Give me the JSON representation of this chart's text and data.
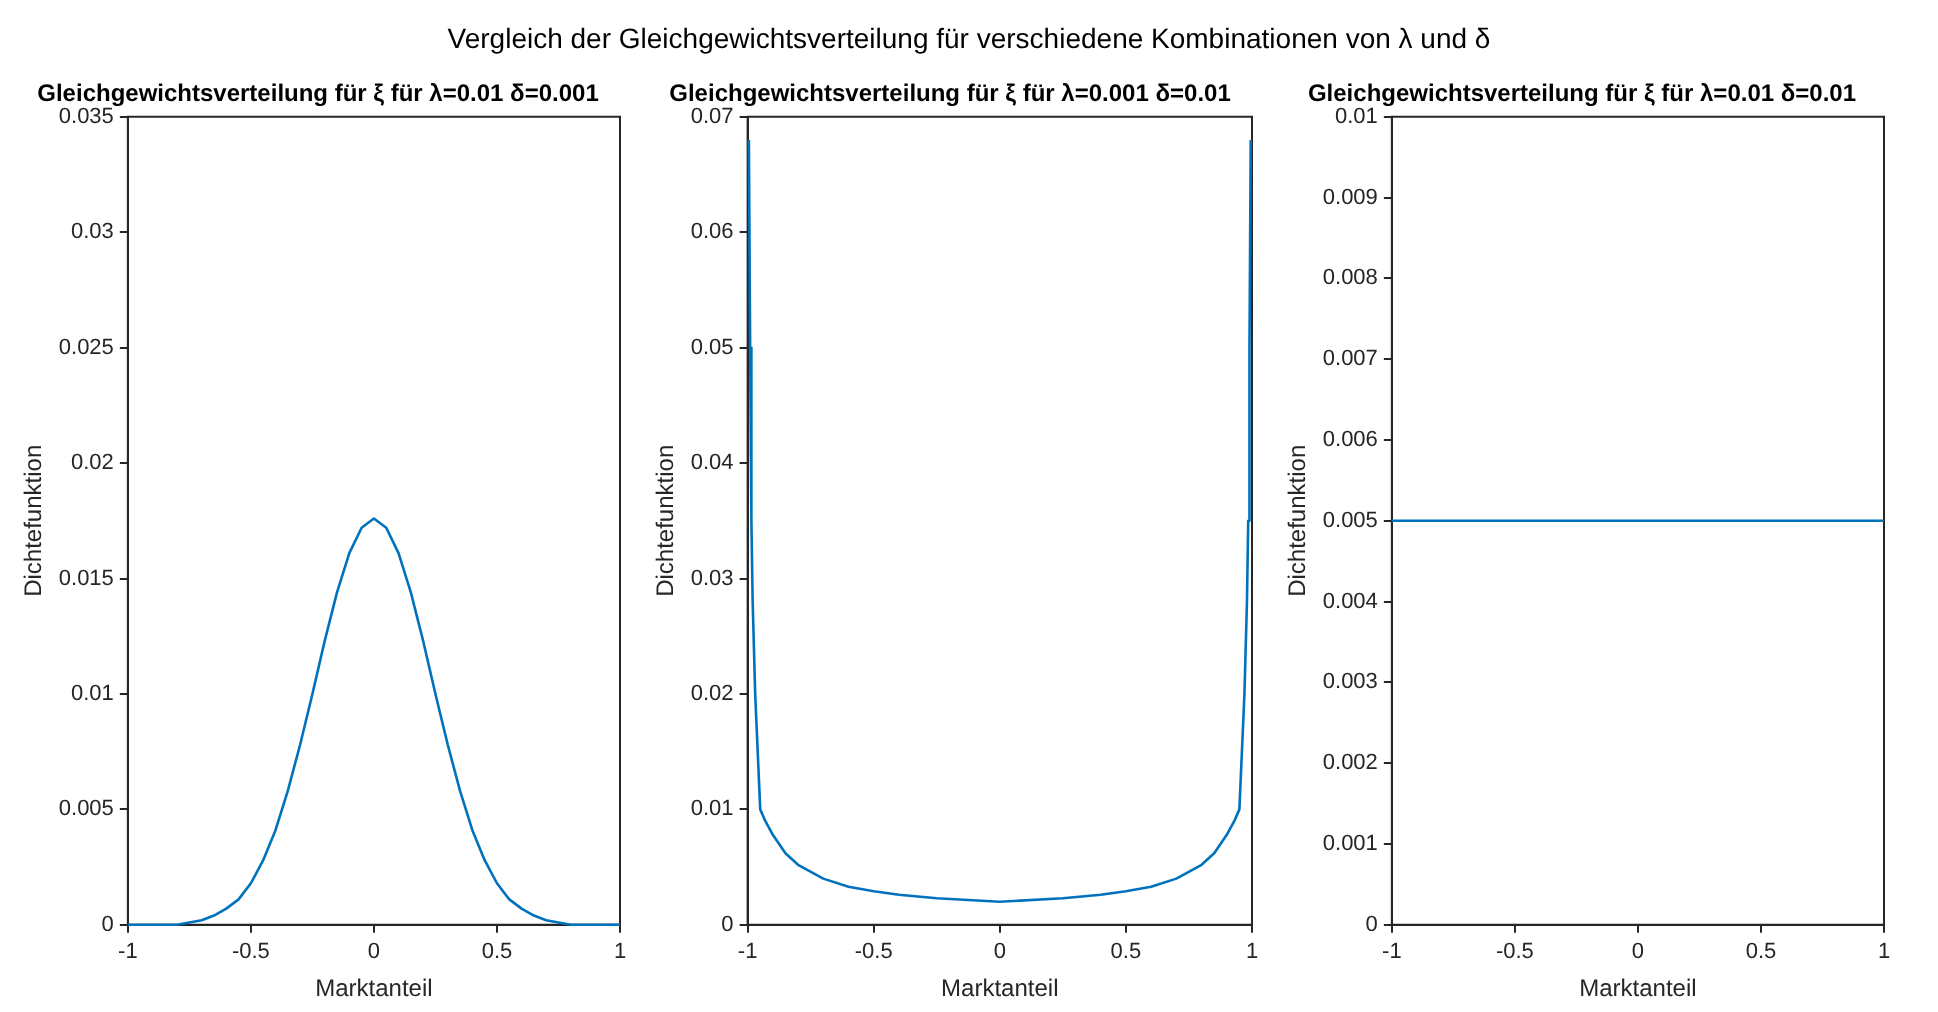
{
  "chart_data": [
    {
      "type": "line",
      "title": "Gleichgewichtsverteilung für ξ für λ=0.01 δ=0.001",
      "xlabel": "Marktanteil",
      "ylabel": "Dichtefunktion",
      "annotations": [
        "Vergleich der Gleichgewichtsverteilung für verschiedene Kombinationen von λ und δ"
      ],
      "xlim": [
        -1,
        1
      ],
      "ylim": [
        0,
        0.035
      ],
      "xticks": [
        -1,
        -0.5,
        0,
        0.5,
        1
      ],
      "yticks": [
        0,
        0.005,
        0.01,
        0.015,
        0.02,
        0.025,
        0.03,
        0.035
      ],
      "grid": false,
      "legend": false,
      "series": [
        {
          "color": "#0072bd",
          "x": [
            -1,
            -0.9,
            -0.8,
            -0.7,
            -0.65,
            -0.6,
            -0.55,
            -0.5,
            -0.45,
            -0.4,
            -0.35,
            -0.3,
            -0.25,
            -0.2,
            -0.15,
            -0.1,
            -0.05,
            0,
            0.05,
            0.1,
            0.15,
            0.2,
            0.25,
            0.3,
            0.35,
            0.4,
            0.45,
            0.5,
            0.55,
            0.6,
            0.65,
            0.7,
            0.8,
            0.9,
            1
          ],
          "values": [
            0,
            0,
            0,
            0.0002,
            0.0004,
            0.0007,
            0.0011,
            0.0018,
            0.0028,
            0.0041,
            0.0058,
            0.0078,
            0.01,
            0.0123,
            0.0144,
            0.0161,
            0.0172,
            0.0176,
            0.0172,
            0.0161,
            0.0144,
            0.0123,
            0.01,
            0.0078,
            0.0058,
            0.0041,
            0.0028,
            0.0018,
            0.0011,
            0.0007,
            0.0004,
            0.0002,
            0,
            0,
            0
          ]
        }
      ]
    },
    {
      "type": "line",
      "title": "Gleichgewichtsverteilung für ξ für λ=0.001 δ=0.01",
      "xlabel": "Marktanteil",
      "ylabel": "Dichtefunktion",
      "xlim": [
        -1,
        1
      ],
      "ylim": [
        0,
        0.07
      ],
      "xticks": [
        -1,
        -0.5,
        0,
        0.5,
        1
      ],
      "yticks": [
        0,
        0.01,
        0.02,
        0.03,
        0.04,
        0.05,
        0.06,
        0.07
      ],
      "grid": false,
      "legend": false,
      "series": [
        {
          "color": "#0072bd",
          "x": [
            -0.995,
            -0.99,
            -0.985,
            -0.98,
            -0.97,
            -0.96,
            -0.95,
            -0.93,
            -0.9,
            -0.85,
            -0.8,
            -0.7,
            -0.6,
            -0.5,
            -0.4,
            -0.25,
            0,
            0.25,
            0.4,
            0.5,
            0.6,
            0.7,
            0.8,
            0.85,
            0.9,
            0.93,
            0.95,
            0.96,
            0.97,
            0.98,
            0.985,
            0.99,
            0.995
          ],
          "values": [
            0.068,
            0.05,
            0.035,
            0.028,
            0.02,
            0.015,
            0.01,
            0.009,
            0.0078,
            0.0062,
            0.0052,
            0.004,
            0.0033,
            0.0029,
            0.0026,
            0.0023,
            0.002,
            0.0023,
            0.0026,
            0.0029,
            0.0033,
            0.004,
            0.0052,
            0.0062,
            0.0078,
            0.009,
            0.01,
            0.015,
            0.02,
            0.028,
            0.035,
            0.05,
            0.068
          ]
        }
      ]
    },
    {
      "type": "line",
      "title": "Gleichgewichtsverteilung für ξ für λ=0.01 δ=0.01",
      "xlabel": "Marktanteil",
      "ylabel": "Dichtefunktion",
      "xlim": [
        -1,
        1
      ],
      "ylim": [
        0,
        0.01
      ],
      "xticks": [
        -1,
        -0.5,
        0,
        0.5,
        1
      ],
      "yticks": [
        0,
        0.001,
        0.002,
        0.003,
        0.004,
        0.005,
        0.006,
        0.007,
        0.008,
        0.009,
        0.01
      ],
      "grid": false,
      "legend": false,
      "series": [
        {
          "color": "#0072bd",
          "x": [
            -1,
            -0.5,
            0,
            0.5,
            1
          ],
          "values": [
            0.005,
            0.005,
            0.005,
            0.005,
            0.005
          ]
        }
      ]
    }
  ]
}
